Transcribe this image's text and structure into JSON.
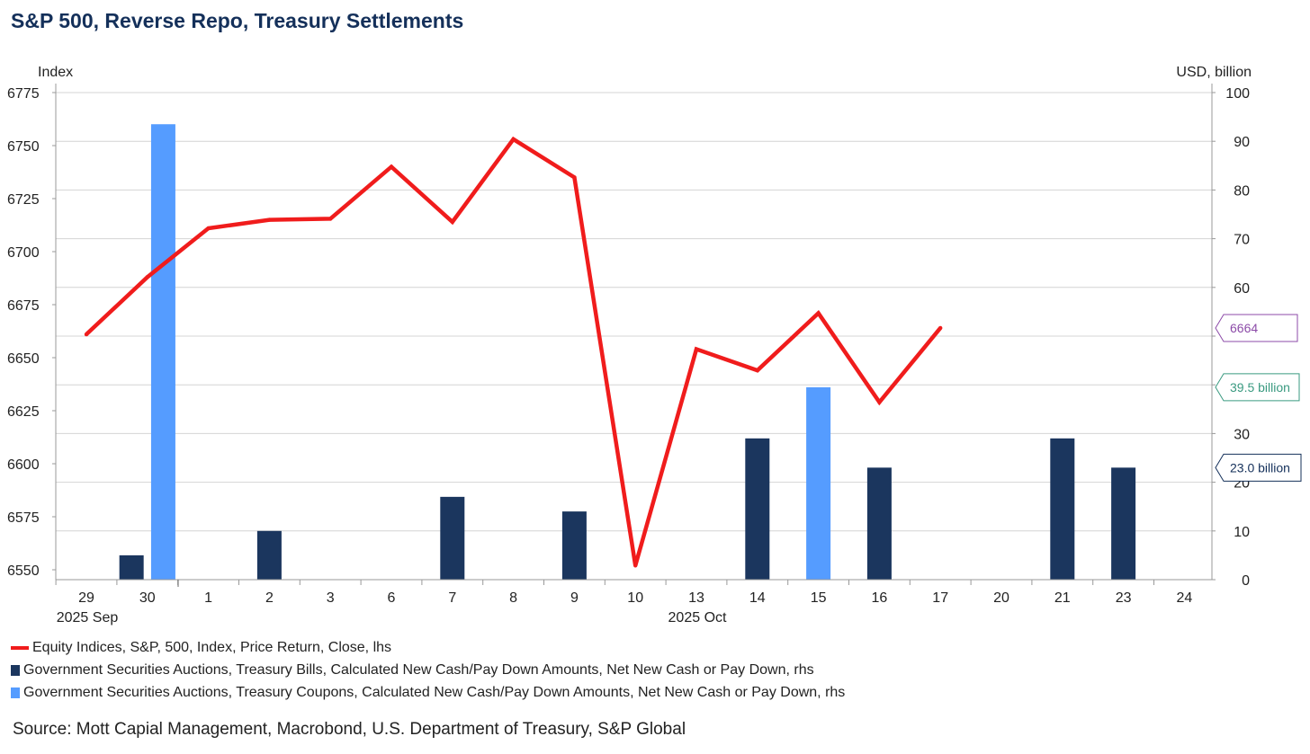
{
  "title": "S&P 500, Reverse Repo, Treasury Settlements",
  "source": "Source: Mott Capial Management, Macrobond, U.S. Department of Treasury, S&P Global",
  "colors": {
    "sp500": "#f01c1c",
    "bills": "#1b365e",
    "coupons": "#559cff",
    "label_sp": "#8c4ba8",
    "label_coupon": "#3a9a80",
    "label_bill": "#14305a"
  },
  "chart_data": {
    "type": "bar",
    "ylabel_left": "Index",
    "ylabel_right": "USD, billion",
    "yticks_left": [
      "6550",
      "6575",
      "6600",
      "6625",
      "6650",
      "6675",
      "6700",
      "6725",
      "6750",
      "6775"
    ],
    "yticks_right": [
      "0",
      "10",
      "20",
      "30",
      "40",
      "50",
      "60",
      "70",
      "80",
      "90",
      "100"
    ],
    "ylim_left": [
      6546,
      6778
    ],
    "ylim_right": [
      0,
      100
    ],
    "categories": [
      "29",
      "30",
      "1",
      "2",
      "3",
      "6",
      "7",
      "8",
      "9",
      "10",
      "13",
      "14",
      "15",
      "16",
      "17",
      "20",
      "21",
      "23",
      "24"
    ],
    "period_labels": [
      {
        "text": "2025 Sep",
        "at": 0
      },
      {
        "text": "2025 Oct",
        "at": 10
      }
    ],
    "line_series": {
      "name": "Equity Indices, S&P, 500, Index, Price Return, Close, lhs",
      "values": [
        6661,
        6688,
        6711,
        6715,
        6715.5,
        6740,
        6714,
        6753,
        6735,
        6552,
        6654,
        6644,
        6671,
        6629,
        6664,
        null,
        null,
        null,
        null
      ]
    },
    "bar_series": [
      {
        "name": "Government Securities Auctions, Treasury Bills, Calculated New Cash/Pay Down Amounts, Net New Cash or Pay Down, rhs",
        "values": [
          null,
          5,
          null,
          10,
          null,
          null,
          17,
          null,
          14,
          null,
          null,
          29,
          null,
          23,
          null,
          null,
          29,
          23,
          null
        ]
      },
      {
        "name": "Government Securities Auctions, Treasury Coupons, Calculated New Cash/Pay Down Amounts, Net New Cash or Pay Down, rhs",
        "values": [
          null,
          93.5,
          null,
          null,
          null,
          null,
          null,
          null,
          null,
          null,
          null,
          null,
          39.5,
          null,
          null,
          null,
          null,
          null,
          null
        ]
      }
    ],
    "value_labels": [
      "6664",
      "39.5 billion",
      "23.0 billion"
    ],
    "grid": true
  }
}
